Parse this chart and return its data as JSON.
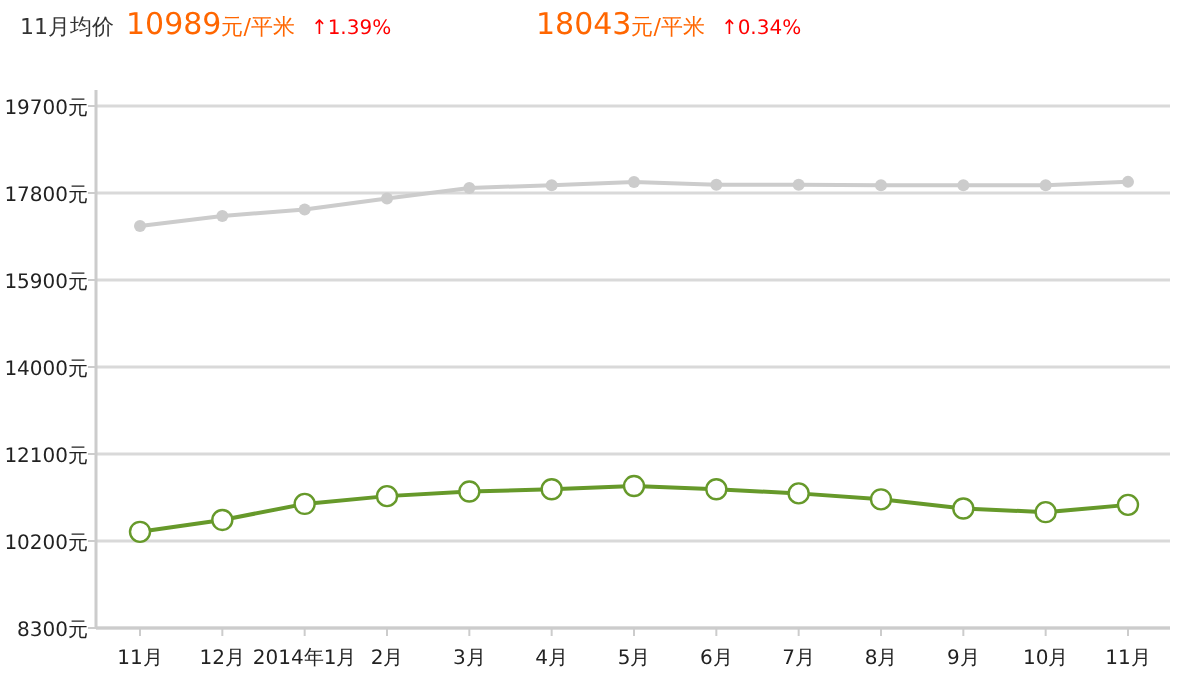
{
  "chart_data": {
    "type": "line",
    "annotations": [
      "11月均价",
      "10989元/平米",
      "↑1.39%",
      "18043元/平米",
      "↑0.34%"
    ],
    "categories": [
      "11月",
      "12月",
      "2014年1月",
      "2月",
      "3月",
      "4月",
      "5月",
      "6月",
      "7月",
      "8月",
      "9月",
      "10月",
      "11月"
    ],
    "series": [
      {
        "color": "#cccccc",
        "marker": "circle",
        "values": [
          17080,
          17300,
          17440,
          17680,
          17910,
          17970,
          18040,
          17980,
          17980,
          17970,
          17970,
          17970,
          18043
        ]
      },
      {
        "color": "#66992a",
        "marker": "circle",
        "values": [
          10400,
          10660,
          11010,
          11180,
          11280,
          11330,
          11400,
          11330,
          11240,
          11110,
          10910,
          10830,
          10989
        ]
      }
    ],
    "ylim": [
      8300,
      19700
    ],
    "yticks": [
      {
        "value": 8300,
        "label": "8300元"
      },
      {
        "value": 10200,
        "label": "10200元"
      },
      {
        "value": 12100,
        "label": "12100元"
      },
      {
        "value": 14000,
        "label": "14000元"
      },
      {
        "value": 15900,
        "label": "15900元"
      },
      {
        "value": 17800,
        "label": "17800元"
      },
      {
        "value": 19700,
        "label": "19700元"
      }
    ],
    "grid": "y"
  }
}
